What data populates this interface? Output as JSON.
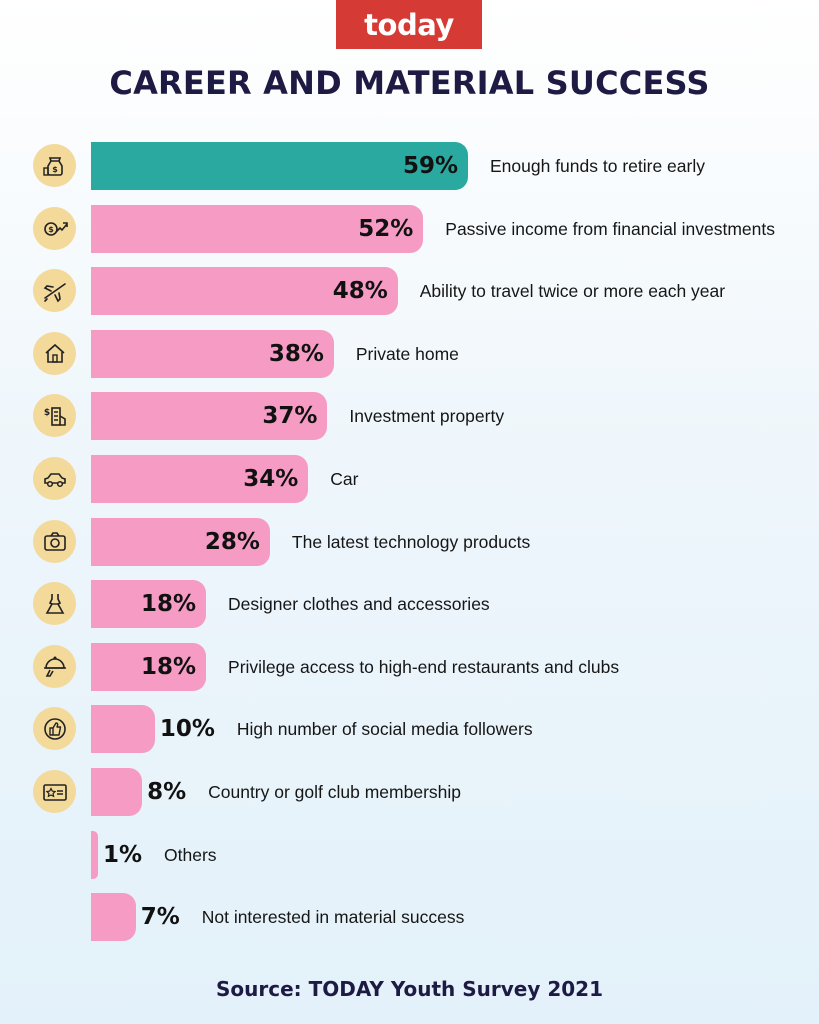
{
  "brand": {
    "logo_text": "today",
    "logo_color": "#d63a35"
  },
  "title": "CAREER AND MATERIAL SUCCESS",
  "source": "Source: TODAY Youth Survey 2021",
  "colors": {
    "highlight": "#2aa9a0",
    "bar": "#f59bc4",
    "icon_circle": "#f3d99a",
    "title": "#1d1b44"
  },
  "chart_data": {
    "type": "bar",
    "orientation": "horizontal",
    "unit": "%",
    "xlim": [
      0,
      59
    ],
    "grid": false,
    "legend": "none",
    "categories": [
      "Enough funds to retire early",
      "Passive income from financial investments",
      "Ability to travel twice or more each year",
      "Private home",
      "Investment property",
      "Car",
      "The latest technology products",
      "Designer clothes and accessories",
      "Privilege access to high-end restaurants and clubs",
      "High number of social media followers",
      "Country or golf club membership",
      "Others",
      "Not interested in material success"
    ],
    "values": [
      59,
      52,
      48,
      38,
      37,
      34,
      28,
      18,
      18,
      10,
      8,
      1,
      7
    ],
    "value_labels": [
      "59%",
      "52%",
      "48%",
      "38%",
      "37%",
      "34%",
      "28%",
      "18%",
      "18%",
      "10%",
      "8%",
      "1%",
      "7%"
    ],
    "highlighted": [
      0
    ],
    "icons": [
      "money-bag-icon",
      "investment-growth-icon",
      "airplane-icon",
      "house-icon",
      "property-building-icon",
      "car-icon",
      "camera-icon",
      "dress-icon",
      "cloche-icon",
      "thumbs-up-icon",
      "membership-card-icon",
      "",
      ""
    ]
  }
}
